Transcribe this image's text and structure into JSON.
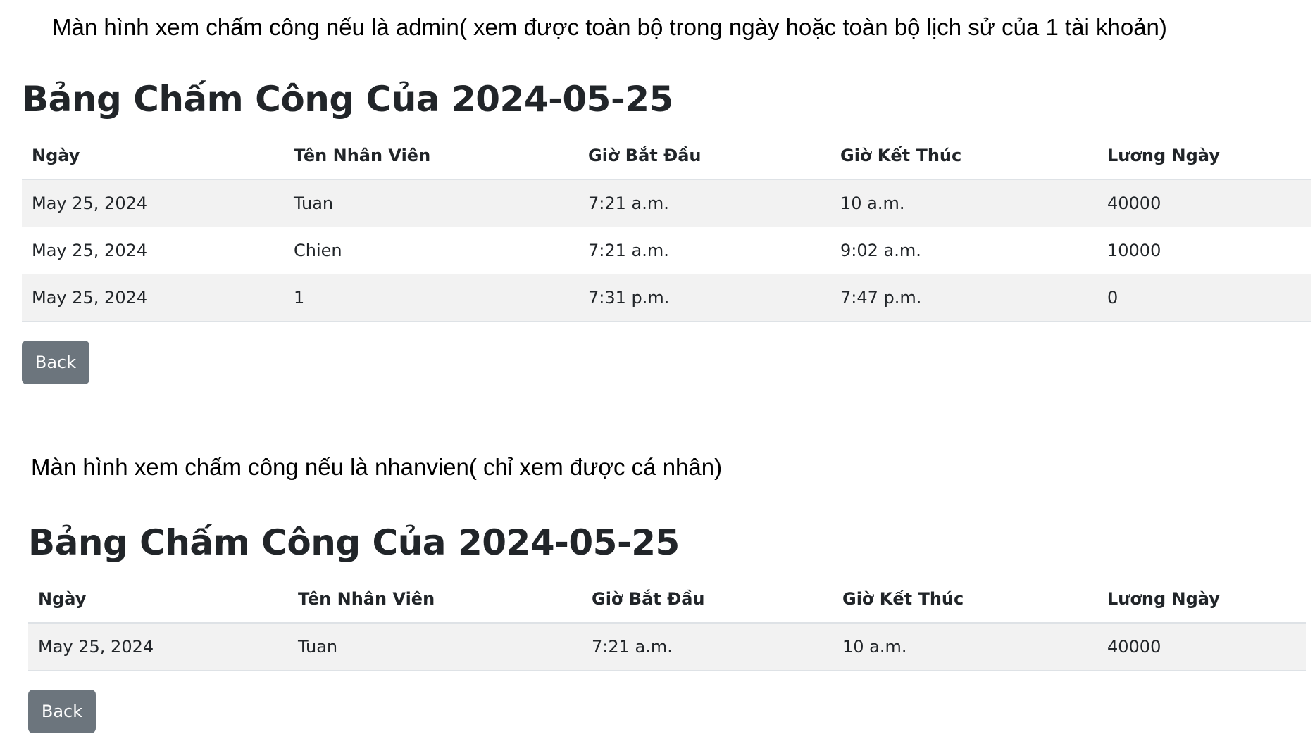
{
  "admin_section": {
    "caption": "Màn hình xem chấm công nếu là admin( xem được toàn bộ trong ngày hoặc toàn bộ lịch sử của 1 tài khoản)",
    "title": "Bảng Chấm Công Của 2024-05-25",
    "columns": [
      "Ngày",
      "Tên Nhân Viên",
      "Giờ Bắt Đầu",
      "Giờ Kết Thúc",
      "Lương Ngày"
    ],
    "rows": [
      [
        "May 25, 2024",
        "Tuan",
        "7:21 a.m.",
        "10 a.m.",
        "40000"
      ],
      [
        "May 25, 2024",
        "Chien",
        "7:21 a.m.",
        "9:02 a.m.",
        "10000"
      ],
      [
        "May 25, 2024",
        "1",
        "7:31 p.m.",
        "7:47 p.m.",
        "0"
      ]
    ],
    "back_label": "Back"
  },
  "employee_section": {
    "caption": "Màn hình xem chấm công nếu là nhanvien( chỉ xem được cá nhân)",
    "title": "Bảng Chấm Công Của 2024-05-25",
    "columns": [
      "Ngày",
      "Tên Nhân Viên",
      "Giờ Bắt Đầu",
      "Giờ Kết Thúc",
      "Lương Ngày"
    ],
    "rows": [
      [
        "May 25, 2024",
        "Tuan",
        "7:21 a.m.",
        "10 a.m.",
        "40000"
      ]
    ],
    "back_label": "Back"
  },
  "colors": {
    "button_bg": "#6c757d",
    "stripe_bg": "#f2f2f2",
    "border": "#dee2e6"
  }
}
